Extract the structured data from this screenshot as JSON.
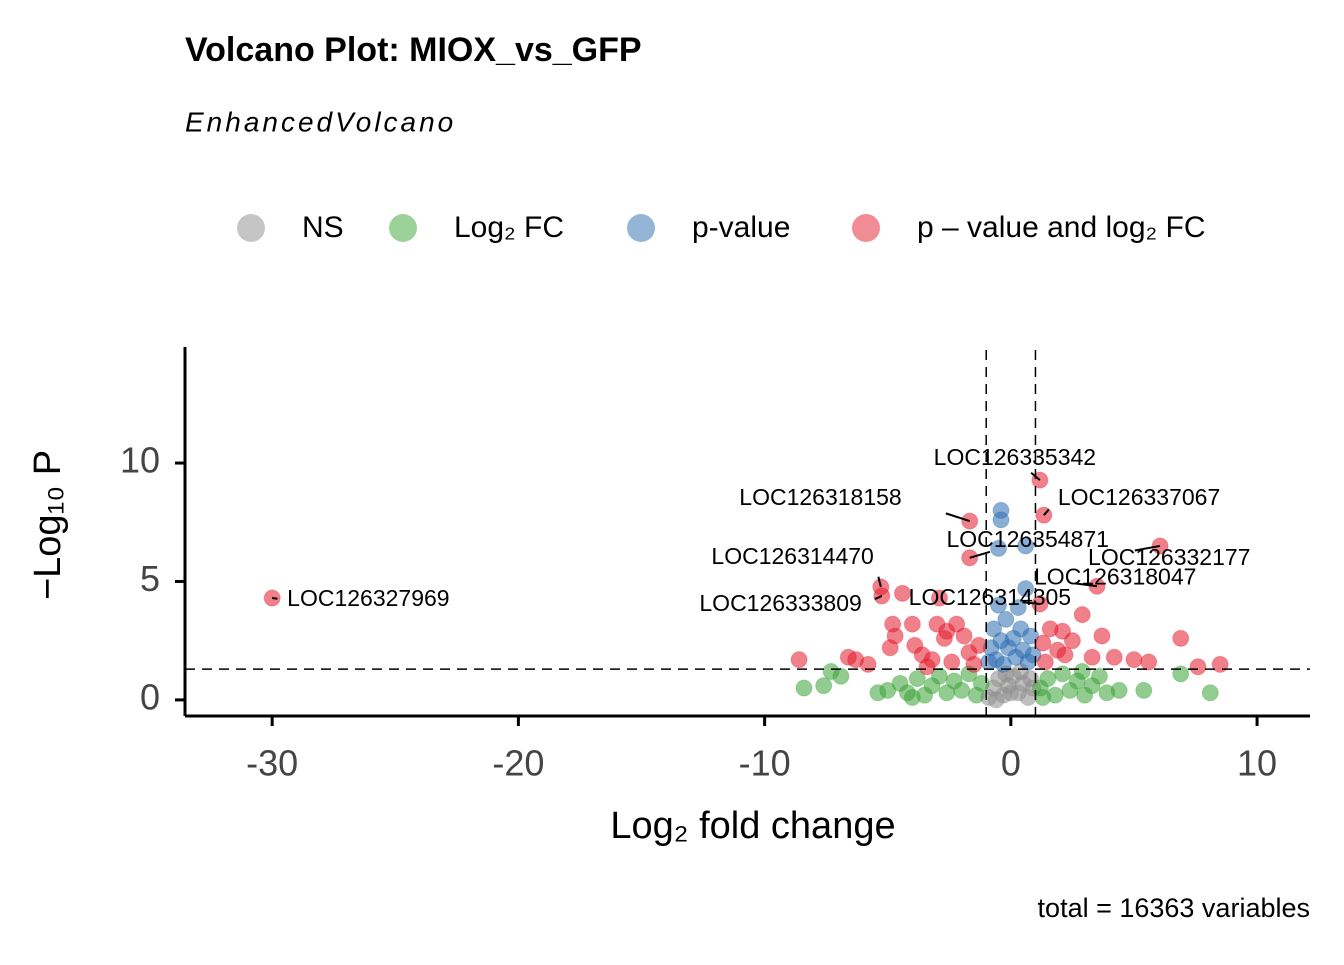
{
  "chart_data": {
    "type": "scatter",
    "title": "Volcano Plot: MIOX_vs_GFP",
    "subtitle": "EnhancedVolcano",
    "x_label": "Log₂ fold change",
    "y_label": "−Log₁₀ P",
    "caption": "total = 16363 variables",
    "xlim": [
      -33.54,
      12.15
    ],
    "ylim": [
      -0.68,
      14.9
    ],
    "xticks": [
      -30,
      -20,
      -10,
      0,
      10
    ],
    "yticks": [
      0,
      5,
      10
    ],
    "fc_cutoffs": [
      -1,
      1
    ],
    "p_cutoff": 1.3,
    "legend_position": "top",
    "series": [
      {
        "name": "NS",
        "color": "#8c8c8c",
        "x": [
          -0.9,
          -0.7,
          -0.5,
          -0.3,
          -0.1,
          0.1,
          0.3,
          0.5,
          0.7,
          0.9,
          -0.6,
          0.0,
          0.4,
          -0.2,
          0.8
        ],
        "values": [
          0.1,
          0.5,
          0.9,
          0.2,
          0.6,
          1.0,
          0.3,
          0.7,
          0.1,
          0.5,
          0.0,
          0.3,
          1.2,
          1.1,
          0.9
        ]
      },
      {
        "name": "Log₂ FC",
        "color": "#3aa335",
        "x": [
          -8.4,
          -7.6,
          -7.3,
          -6.9,
          -5.0,
          -4.5,
          -4.2,
          -3.8,
          -3.5,
          -3.2,
          -2.9,
          -2.6,
          -2.3,
          -2.0,
          -1.7,
          -1.4,
          -1.2,
          1.2,
          1.5,
          1.8,
          2.1,
          2.4,
          2.7,
          3.0,
          3.3,
          3.6,
          3.9,
          4.4,
          5.4,
          6.9,
          8.1,
          -5.4,
          -4.0,
          1.3,
          2.9
        ],
        "values": [
          0.5,
          0.6,
          1.2,
          1.0,
          0.4,
          0.7,
          0.3,
          0.9,
          0.2,
          0.6,
          1.0,
          0.3,
          0.8,
          0.4,
          1.1,
          0.2,
          0.7,
          0.5,
          0.9,
          0.2,
          1.1,
          0.4,
          0.8,
          0.2,
          0.6,
          1.0,
          0.3,
          0.4,
          0.4,
          1.1,
          0.3,
          0.3,
          0.1,
          0.1,
          1.2
        ]
      },
      {
        "name": "p-value",
        "color": "#2b6cb0",
        "x": [
          -0.4,
          -0.4,
          -0.5,
          0.6,
          0.6,
          -0.5,
          0.3,
          -0.7,
          -0.2,
          0.4,
          0.8,
          -0.8,
          -0.4,
          0.1,
          0.5,
          -0.6,
          0.2,
          -0.1,
          0.7,
          -0.3,
          0.9,
          -0.9
        ],
        "values": [
          8.0,
          7.6,
          6.4,
          6.5,
          4.7,
          4.0,
          3.9,
          3.0,
          3.4,
          3.0,
          2.7,
          2.2,
          2.5,
          2.6,
          2.1,
          1.7,
          1.8,
          2.2,
          1.6,
          1.5,
          1.9,
          1.6
        ]
      },
      {
        "name": "p – value and log₂ FC",
        "color": "#e31a2c",
        "x": [
          -30.0,
          1.18,
          -1.67,
          1.34,
          -1.67,
          6.06,
          3.5,
          -5.28,
          -5.24,
          1.18,
          -8.6,
          -6.6,
          -6.3,
          -5.8,
          -4.8,
          -4.7,
          -4.4,
          -4.9,
          -4.0,
          -3.9,
          -3.6,
          -3.4,
          -3.2,
          -3.0,
          -2.7,
          -2.6,
          -2.4,
          -2.2,
          -1.9,
          -1.7,
          -1.5,
          -1.3,
          -2.9,
          1.3,
          1.6,
          1.9,
          2.2,
          2.5,
          2.9,
          3.3,
          3.7,
          4.2,
          5.0,
          5.6,
          6.9,
          7.6,
          8.5,
          1.4,
          2.1
        ],
        "values": [
          4.3,
          9.28,
          7.55,
          7.8,
          6.0,
          6.5,
          4.8,
          4.77,
          4.39,
          4.05,
          1.7,
          1.8,
          1.7,
          1.5,
          3.2,
          2.7,
          4.5,
          2.2,
          3.2,
          2.3,
          1.9,
          1.4,
          1.7,
          3.2,
          2.6,
          2.9,
          1.6,
          3.2,
          2.7,
          2.0,
          1.5,
          2.3,
          4.3,
          2.4,
          3.0,
          2.1,
          1.9,
          2.5,
          3.6,
          1.8,
          2.7,
          1.8,
          1.7,
          1.6,
          2.6,
          1.4,
          1.5,
          1.6,
          2.9
        ],
        "labels": [
          "LOC126327969",
          "LOC126335342",
          "LOC126318158",
          "LOC126337067",
          "LOC126354871",
          "LOC126332177",
          "LOC126318047",
          "LOC126314470",
          "LOC126333809",
          "LOC126314305",
          null,
          null,
          null,
          null,
          null,
          null,
          null,
          null,
          null,
          null,
          null,
          null,
          null,
          null,
          null,
          null,
          null,
          null,
          null,
          null,
          null,
          null,
          null,
          null,
          null,
          null,
          null,
          null,
          null,
          null,
          null,
          null,
          null,
          null,
          null,
          null,
          null,
          null,
          null
        ]
      }
    ]
  }
}
